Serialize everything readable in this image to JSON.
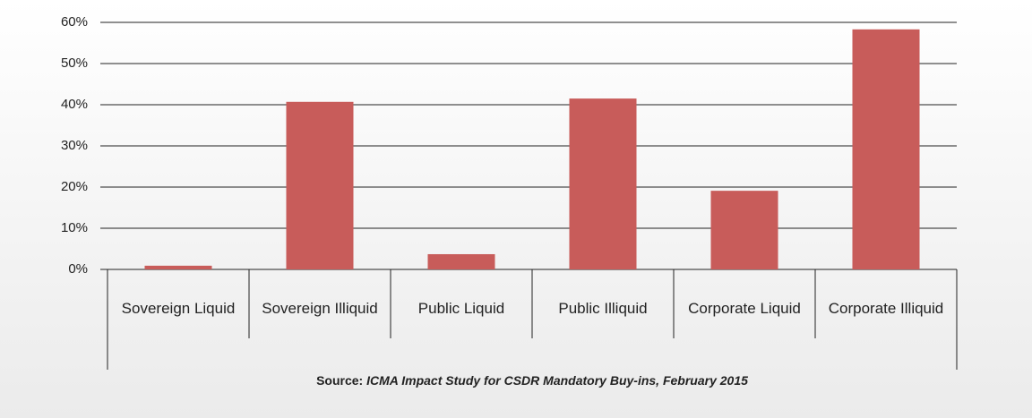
{
  "chart_data": {
    "type": "bar",
    "categories": [
      "Sovereign Liquid",
      "Sovereign Illiquid",
      "Public Liquid",
      "Public Illiquid",
      "Corporate Liquid",
      "Corporate Illiquid"
    ],
    "values": [
      0.9,
      40.7,
      3.7,
      41.5,
      19.1,
      58.3
    ],
    "color": "#c85c5a",
    "ylim": [
      0,
      60
    ],
    "yticks": [
      {
        "value": 0,
        "label": "0%"
      },
      {
        "value": 10,
        "label": "10%"
      },
      {
        "value": 20,
        "label": "20%"
      },
      {
        "value": 30,
        "label": "30%"
      },
      {
        "value": 40,
        "label": "40%"
      },
      {
        "value": 50,
        "label": "50%"
      },
      {
        "value": 60,
        "label": "60%"
      }
    ],
    "grid": true,
    "source_label": "Source:",
    "source": "ICMA Impact Study for CSDR Mandatory Buy-ins, February 2015"
  }
}
